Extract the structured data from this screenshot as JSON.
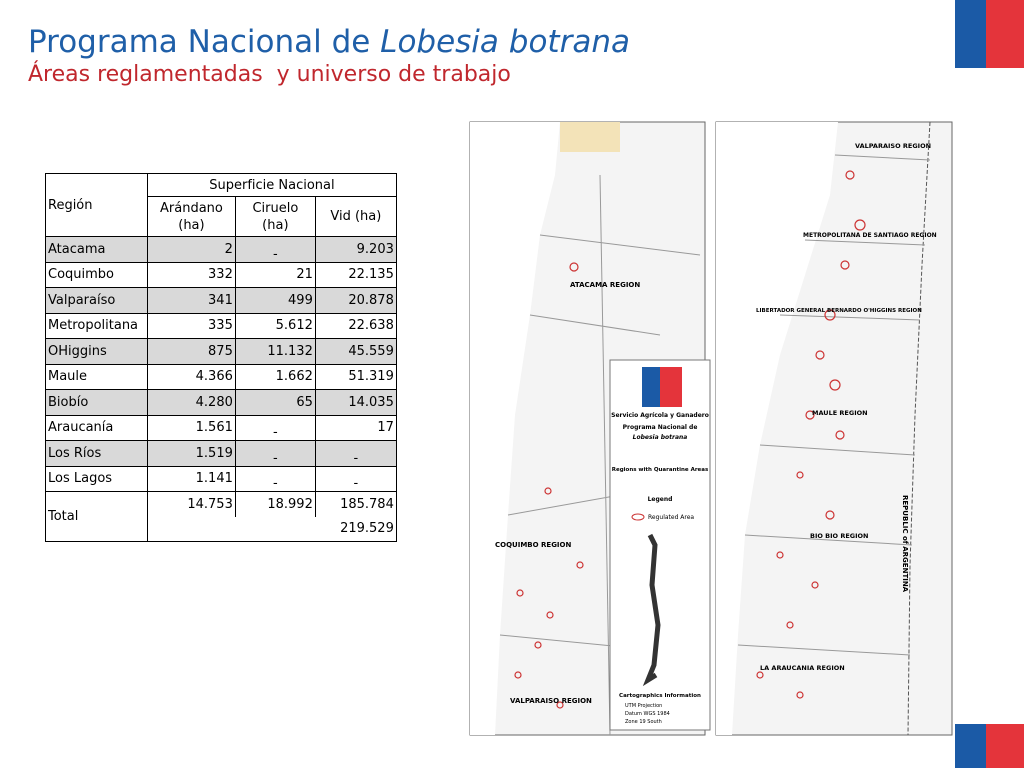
{
  "header": {
    "title": "Programa Nacional de ",
    "title_italic": "Lobesia botrana",
    "subtitle": "Áreas reglamentadas  y universo de trabajo"
  },
  "table": {
    "region_header": "Región",
    "group_header": "Superficie Nacional",
    "columns": [
      "Arándano (ha)",
      "Ciruelo (ha)",
      "Vid (ha)"
    ],
    "rows": [
      [
        "Atacama",
        "2",
        "-",
        "9.203"
      ],
      [
        "Coquimbo",
        "332",
        "21",
        "22.135"
      ],
      [
        "Valparaíso",
        "341",
        "499",
        "20.878"
      ],
      [
        "Metropolitana",
        "335",
        "5.612",
        "22.638"
      ],
      [
        "OHiggins",
        "875",
        "11.132",
        "45.559"
      ],
      [
        "Maule",
        "4.366",
        "1.662",
        "51.319"
      ],
      [
        "Biobío",
        "4.280",
        "65",
        "14.035"
      ],
      [
        "Araucanía",
        "1.561",
        "-",
        "17"
      ],
      [
        "Los Ríos",
        "1.519",
        "-",
        "-"
      ],
      [
        "Los Lagos",
        "1.141",
        "-",
        "-"
      ]
    ],
    "total": {
      "label": "Total",
      "values": [
        "14.753",
        "18.992",
        "185.784"
      ],
      "grand_total": "219.529"
    }
  },
  "maps": {
    "north_labels": [
      "ATACAMA REGION",
      "COQUIMBO REGION",
      "VALPARAISO REGION"
    ],
    "south_labels": [
      "VALPARAISO REGION",
      "METROPOLITANA DE SANTIAGO REGION",
      "LIBERTADOR GENERAL BERNARDO O'HIGGINS REGION",
      "MAULE REGION",
      "BIO BIO REGION",
      "LA ARAUCANIA REGION"
    ],
    "country": "REPUBLIC of ARGENTINA",
    "legend": {
      "org": "Servicio Agrícola y Ganadero",
      "program": "Programa Nacional de",
      "program_italic": "Lobesia botrana",
      "subtitle": "Regions with Quarantine Areas",
      "legend_title": "Legend",
      "item": "Regulated Area",
      "carto_title": "Cartographics Information",
      "carto": [
        "UTM Projection",
        "Datum WGS 1984",
        "Zone 19 South"
      ]
    }
  }
}
